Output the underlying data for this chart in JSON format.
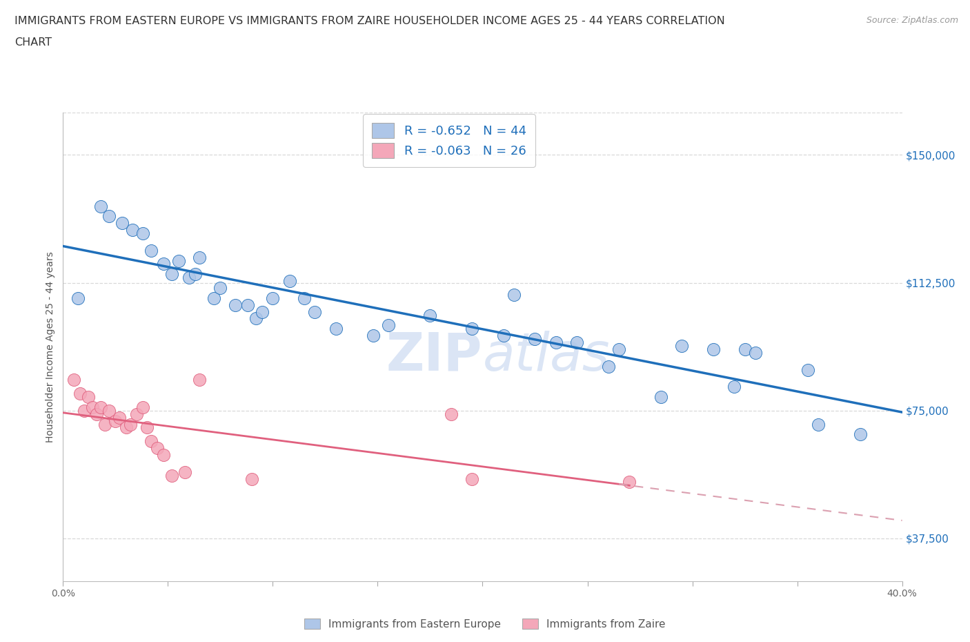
{
  "title_line1": "IMMIGRANTS FROM EASTERN EUROPE VS IMMIGRANTS FROM ZAIRE HOUSEHOLDER INCOME AGES 25 - 44 YEARS CORRELATION",
  "title_line2": "CHART",
  "source_text": "Source: ZipAtlas.com",
  "ylabel": "Householder Income Ages 25 - 44 years",
  "xlim": [
    0.0,
    0.4
  ],
  "ylim": [
    25000,
    162500
  ],
  "xtick_vals": [
    0.0,
    0.05,
    0.1,
    0.15,
    0.2,
    0.25,
    0.3,
    0.35,
    0.4
  ],
  "xtick_labels": [
    "0.0%",
    "",
    "",
    "",
    "",
    "",
    "",
    "",
    "40.0%"
  ],
  "ytick_vals": [
    37500,
    75000,
    112500,
    150000
  ],
  "ytick_labels": [
    "$37,500",
    "$75,000",
    "$112,500",
    "$150,000"
  ],
  "legend_blue_label": "R = -0.652   N = 44",
  "legend_pink_label": "R = -0.063   N = 26",
  "legend_blue_color": "#aec6e8",
  "legend_pink_color": "#f4a7b9",
  "trendline_blue_color": "#1f6fba",
  "trendline_pink_color": "#e0607e",
  "trendline_pink_dashed_color": "#dba0b0",
  "watermark_color": "#c8d8f0",
  "footer_blue_label": "Immigrants from Eastern Europe",
  "footer_pink_label": "Immigrants from Zaire",
  "blue_x": [
    0.007,
    0.018,
    0.022,
    0.028,
    0.033,
    0.038,
    0.042,
    0.048,
    0.052,
    0.055,
    0.06,
    0.063,
    0.065,
    0.072,
    0.075,
    0.082,
    0.088,
    0.092,
    0.095,
    0.1,
    0.108,
    0.115,
    0.12,
    0.13,
    0.148,
    0.155,
    0.175,
    0.195,
    0.21,
    0.215,
    0.225,
    0.235,
    0.245,
    0.26,
    0.265,
    0.285,
    0.295,
    0.31,
    0.32,
    0.325,
    0.33,
    0.355,
    0.36,
    0.38
  ],
  "blue_y": [
    108000,
    135000,
    132000,
    130000,
    128000,
    127000,
    122000,
    118000,
    115000,
    119000,
    114000,
    115000,
    120000,
    108000,
    111000,
    106000,
    106000,
    102000,
    104000,
    108000,
    113000,
    108000,
    104000,
    99000,
    97000,
    100000,
    103000,
    99000,
    97000,
    109000,
    96000,
    95000,
    95000,
    88000,
    93000,
    79000,
    94000,
    93000,
    82000,
    93000,
    92000,
    87000,
    71000,
    68000
  ],
  "pink_x": [
    0.005,
    0.008,
    0.01,
    0.012,
    0.014,
    0.016,
    0.018,
    0.02,
    0.022,
    0.025,
    0.027,
    0.03,
    0.032,
    0.035,
    0.038,
    0.04,
    0.042,
    0.045,
    0.048,
    0.052,
    0.058,
    0.065,
    0.09,
    0.185,
    0.195,
    0.27
  ],
  "pink_y": [
    84000,
    80000,
    75000,
    79000,
    76000,
    74000,
    76000,
    71000,
    75000,
    72000,
    73000,
    70000,
    71000,
    74000,
    76000,
    70000,
    66000,
    64000,
    62000,
    56000,
    57000,
    84000,
    55000,
    74000,
    55000,
    54000
  ]
}
